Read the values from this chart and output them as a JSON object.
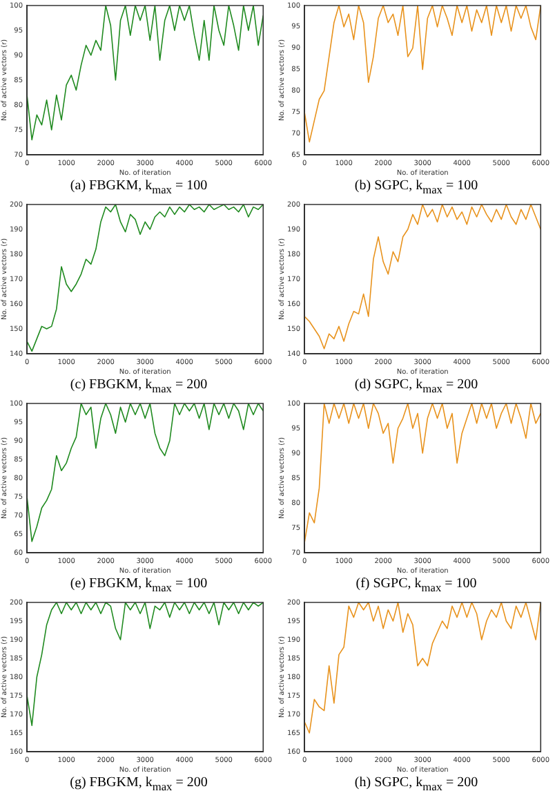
{
  "chart_data": [
    {
      "type": "line",
      "title": "(a)  FBGKM, k$_{max}$ = 100",
      "xlabel": "No. of iteration",
      "ylabel": "No. of active vectors (r)",
      "xlim": [
        0,
        6000
      ],
      "xticks": [
        0,
        1000,
        2000,
        3000,
        4000,
        5000,
        6000
      ],
      "ylim": [
        70,
        100
      ],
      "yticks": [
        70,
        75,
        80,
        85,
        90,
        95,
        100
      ],
      "grid": false,
      "legend": false,
      "x": [
        0,
        125,
        250,
        375,
        500,
        625,
        750,
        875,
        1000,
        1125,
        1250,
        1375,
        1500,
        1625,
        1750,
        1875,
        2000,
        2125,
        2250,
        2375,
        2500,
        2625,
        2750,
        2875,
        3000,
        3125,
        3250,
        3375,
        3500,
        3625,
        3750,
        3875,
        4000,
        4125,
        4250,
        4375,
        4500,
        4625,
        4750,
        4875,
        5000,
        5125,
        5250,
        5375,
        5500,
        5625,
        5750,
        5875,
        6000
      ],
      "series": [
        {
          "color": "#1f8a1f",
          "values": [
            82,
            73,
            78,
            76,
            81,
            75,
            82,
            77,
            84,
            86,
            83,
            88,
            92,
            90,
            93,
            91,
            100,
            96,
            85,
            97,
            100,
            94,
            100,
            97,
            100,
            93,
            100,
            89,
            97,
            100,
            95,
            100,
            97,
            100,
            94,
            89,
            97,
            89,
            100,
            95,
            92,
            100,
            96,
            91,
            100,
            95,
            100,
            92,
            98
          ]
        }
      ]
    },
    {
      "type": "line",
      "title": "(b)  SGPC, k$_{max}$ = 100",
      "xlabel": "No. of iteration",
      "ylabel": "No. of active vectors (r)",
      "xlim": [
        0,
        6000
      ],
      "xticks": [
        0,
        1000,
        2000,
        3000,
        4000,
        5000,
        6000
      ],
      "ylim": [
        65,
        100
      ],
      "yticks": [
        65,
        70,
        75,
        80,
        85,
        90,
        95,
        100
      ],
      "grid": false,
      "legend": false,
      "x": [
        0,
        125,
        250,
        375,
        500,
        625,
        750,
        875,
        1000,
        1125,
        1250,
        1375,
        1500,
        1625,
        1750,
        1875,
        2000,
        2125,
        2250,
        2375,
        2500,
        2625,
        2750,
        2875,
        3000,
        3125,
        3250,
        3375,
        3500,
        3625,
        3750,
        3875,
        4000,
        4125,
        4250,
        4375,
        4500,
        4625,
        4750,
        4875,
        5000,
        5125,
        5250,
        5375,
        5500,
        5625,
        5750,
        5875,
        6000
      ],
      "series": [
        {
          "color": "#e8921c",
          "values": [
            75,
            68,
            73,
            78,
            80,
            88,
            96,
            100,
            95,
            98,
            92,
            100,
            96,
            82,
            88,
            97,
            100,
            96,
            98,
            93,
            100,
            88,
            90,
            100,
            85,
            97,
            100,
            95,
            100,
            97,
            93,
            100,
            96,
            100,
            94,
            99,
            96,
            100,
            93,
            100,
            96,
            100,
            94,
            100,
            97,
            100,
            95,
            92,
            100
          ]
        }
      ]
    },
    {
      "type": "line",
      "title": "(c)  FBGKM, k$_{max}$ = 200",
      "xlabel": "No. of iteration",
      "ylabel": "No. of active vectors (r)",
      "xlim": [
        0,
        6000
      ],
      "xticks": [
        0,
        1000,
        2000,
        3000,
        4000,
        5000,
        6000
      ],
      "ylim": [
        140,
        200
      ],
      "yticks": [
        140,
        150,
        160,
        170,
        180,
        190,
        200
      ],
      "grid": false,
      "legend": false,
      "x": [
        0,
        125,
        250,
        375,
        500,
        625,
        750,
        875,
        1000,
        1125,
        1250,
        1375,
        1500,
        1625,
        1750,
        1875,
        2000,
        2125,
        2250,
        2375,
        2500,
        2625,
        2750,
        2875,
        3000,
        3125,
        3250,
        3375,
        3500,
        3625,
        3750,
        3875,
        4000,
        4125,
        4250,
        4375,
        4500,
        4625,
        4750,
        4875,
        5000,
        5125,
        5250,
        5375,
        5500,
        5625,
        5750,
        5875,
        6000
      ],
      "series": [
        {
          "color": "#1f8a1f",
          "values": [
            145,
            141,
            146,
            151,
            150,
            151,
            158,
            175,
            168,
            165,
            168,
            172,
            178,
            176,
            182,
            193,
            199,
            197,
            200,
            193,
            189,
            196,
            194,
            188,
            193,
            190,
            195,
            197,
            195,
            199,
            196,
            199,
            197,
            200,
            198,
            199,
            197,
            200,
            198,
            199,
            200,
            198,
            199,
            197,
            200,
            195,
            199,
            198,
            200
          ]
        }
      ]
    },
    {
      "type": "line",
      "title": "(d)  SGPC, k$_{max}$ = 200",
      "xlabel": "No. of iteration",
      "ylabel": "No. of active vectors (r)",
      "xlim": [
        0,
        6000
      ],
      "xticks": [
        0,
        1000,
        2000,
        3000,
        4000,
        5000,
        6000
      ],
      "ylim": [
        140,
        200
      ],
      "yticks": [
        140,
        150,
        160,
        170,
        180,
        190,
        200
      ],
      "grid": false,
      "legend": false,
      "x": [
        0,
        125,
        250,
        375,
        500,
        625,
        750,
        875,
        1000,
        1125,
        1250,
        1375,
        1500,
        1625,
        1750,
        1875,
        2000,
        2125,
        2250,
        2375,
        2500,
        2625,
        2750,
        2875,
        3000,
        3125,
        3250,
        3375,
        3500,
        3625,
        3750,
        3875,
        4000,
        4125,
        4250,
        4375,
        4500,
        4625,
        4750,
        4875,
        5000,
        5125,
        5250,
        5375,
        5500,
        5625,
        5750,
        5875,
        6000
      ],
      "series": [
        {
          "color": "#e8921c",
          "values": [
            155,
            153,
            150,
            147,
            142,
            148,
            146,
            151,
            145,
            152,
            157,
            156,
            164,
            155,
            178,
            187,
            177,
            172,
            181,
            177,
            187,
            190,
            196,
            192,
            200,
            195,
            198,
            193,
            200,
            195,
            199,
            194,
            197,
            192,
            199,
            195,
            200,
            196,
            193,
            198,
            194,
            200,
            195,
            192,
            198,
            194,
            200,
            195,
            190
          ]
        }
      ]
    },
    {
      "type": "line",
      "title": "(e)  FBGKM, k$_{max}$ = 100",
      "xlabel": "No. of iteration",
      "ylabel": "No. of active vectors (r)",
      "xlim": [
        0,
        6000
      ],
      "xticks": [
        0,
        1000,
        2000,
        3000,
        4000,
        5000,
        6000
      ],
      "ylim": [
        60,
        100
      ],
      "yticks": [
        60,
        65,
        70,
        75,
        80,
        85,
        90,
        95,
        100
      ],
      "grid": false,
      "legend": false,
      "x": [
        0,
        125,
        250,
        375,
        500,
        625,
        750,
        875,
        1000,
        1125,
        1250,
        1375,
        1500,
        1625,
        1750,
        1875,
        2000,
        2125,
        2250,
        2375,
        2500,
        2625,
        2750,
        2875,
        3000,
        3125,
        3250,
        3375,
        3500,
        3625,
        3750,
        3875,
        4000,
        4125,
        4250,
        4375,
        4500,
        4625,
        4750,
        4875,
        5000,
        5125,
        5250,
        5375,
        5500,
        5625,
        5750,
        5875,
        6000
      ],
      "series": [
        {
          "color": "#1f8a1f",
          "values": [
            75,
            63,
            67,
            72,
            74,
            77,
            86,
            82,
            84,
            88,
            91,
            100,
            97,
            99,
            88,
            96,
            100,
            97,
            92,
            99,
            95,
            100,
            97,
            100,
            96,
            100,
            92,
            88,
            86,
            90,
            100,
            97,
            100,
            98,
            100,
            96,
            100,
            93,
            100,
            97,
            100,
            96,
            100,
            98,
            93,
            100,
            97,
            100,
            98
          ]
        }
      ]
    },
    {
      "type": "line",
      "title": "(f)  SGPC, k$_{max}$ = 100",
      "xlabel": "No. of iteration",
      "ylabel": "No. of active vectors (r)",
      "xlim": [
        0,
        6000
      ],
      "xticks": [
        0,
        1000,
        2000,
        3000,
        4000,
        5000,
        6000
      ],
      "ylim": [
        70,
        100
      ],
      "yticks": [
        70,
        75,
        80,
        85,
        90,
        95,
        100
      ],
      "grid": false,
      "legend": false,
      "x": [
        0,
        125,
        250,
        375,
        500,
        625,
        750,
        875,
        1000,
        1125,
        1250,
        1375,
        1500,
        1625,
        1750,
        1875,
        2000,
        2125,
        2250,
        2375,
        2500,
        2625,
        2750,
        2875,
        3000,
        3125,
        3250,
        3375,
        3500,
        3625,
        3750,
        3875,
        4000,
        4125,
        4250,
        4375,
        4500,
        4625,
        4750,
        4875,
        5000,
        5125,
        5250,
        5375,
        5500,
        5625,
        5750,
        5875,
        6000
      ],
      "series": [
        {
          "color": "#e8921c",
          "values": [
            72,
            78,
            76,
            83,
            100,
            96,
            100,
            97,
            100,
            96,
            100,
            97,
            100,
            95,
            100,
            98,
            94,
            96,
            88,
            95,
            97,
            100,
            95,
            98,
            90,
            97,
            100,
            97,
            100,
            95,
            98,
            88,
            94,
            97,
            100,
            96,
            100,
            97,
            100,
            95,
            98,
            100,
            96,
            100,
            97,
            93,
            100,
            96,
            98
          ]
        }
      ]
    },
    {
      "type": "line",
      "title": "(g)  FBGKM, k$_{max}$ = 200",
      "xlabel": "No. of iteration",
      "ylabel": "No. of active vectors (r)",
      "xlim": [
        0,
        6000
      ],
      "xticks": [
        0,
        1000,
        2000,
        3000,
        4000,
        5000,
        6000
      ],
      "ylim": [
        160,
        200
      ],
      "yticks": [
        160,
        165,
        170,
        175,
        180,
        185,
        190,
        195,
        200
      ],
      "grid": false,
      "legend": false,
      "x": [
        0,
        125,
        250,
        375,
        500,
        625,
        750,
        875,
        1000,
        1125,
        1250,
        1375,
        1500,
        1625,
        1750,
        1875,
        2000,
        2125,
        2250,
        2375,
        2500,
        2625,
        2750,
        2875,
        3000,
        3125,
        3250,
        3375,
        3500,
        3625,
        3750,
        3875,
        4000,
        4125,
        4250,
        4375,
        4500,
        4625,
        4750,
        4875,
        5000,
        5125,
        5250,
        5375,
        5500,
        5625,
        5750,
        5875,
        6000
      ],
      "series": [
        {
          "color": "#1f8a1f",
          "values": [
            175,
            167,
            180,
            186,
            194,
            198,
            200,
            197,
            200,
            198,
            200,
            197,
            200,
            198,
            200,
            197,
            200,
            199,
            193,
            190,
            200,
            198,
            200,
            197,
            200,
            193,
            199,
            198,
            200,
            196,
            200,
            198,
            200,
            197,
            200,
            198,
            200,
            197,
            200,
            194,
            200,
            198,
            200,
            197,
            200,
            198,
            200,
            199,
            200
          ]
        }
      ]
    },
    {
      "type": "line",
      "title": "(h)  SGPC, k$_{max}$ = 200",
      "xlabel": "No. of iteration",
      "ylabel": "No. of active vectors (r)",
      "xlim": [
        0,
        6000
      ],
      "xticks": [
        0,
        1000,
        2000,
        3000,
        4000,
        5000,
        6000
      ],
      "ylim": [
        160,
        200
      ],
      "yticks": [
        160,
        165,
        170,
        175,
        180,
        185,
        190,
        195,
        200
      ],
      "grid": false,
      "legend": false,
      "x": [
        0,
        125,
        250,
        375,
        500,
        625,
        750,
        875,
        1000,
        1125,
        1250,
        1375,
        1500,
        1625,
        1750,
        1875,
        2000,
        2125,
        2250,
        2375,
        2500,
        2625,
        2750,
        2875,
        3000,
        3125,
        3250,
        3375,
        3500,
        3625,
        3750,
        3875,
        4000,
        4125,
        4250,
        4375,
        4500,
        4625,
        4750,
        4875,
        5000,
        5125,
        5250,
        5375,
        5500,
        5625,
        5750,
        5875,
        6000
      ],
      "series": [
        {
          "color": "#e8921c",
          "values": [
            168,
            165,
            174,
            172,
            171,
            183,
            173,
            186,
            188,
            199,
            196,
            200,
            198,
            200,
            195,
            199,
            193,
            198,
            195,
            200,
            192,
            197,
            194,
            183,
            185,
            183,
            189,
            192,
            195,
            193,
            199,
            196,
            200,
            196,
            200,
            197,
            190,
            195,
            198,
            196,
            200,
            195,
            193,
            199,
            196,
            200,
            195,
            190,
            200
          ]
        }
      ]
    }
  ]
}
